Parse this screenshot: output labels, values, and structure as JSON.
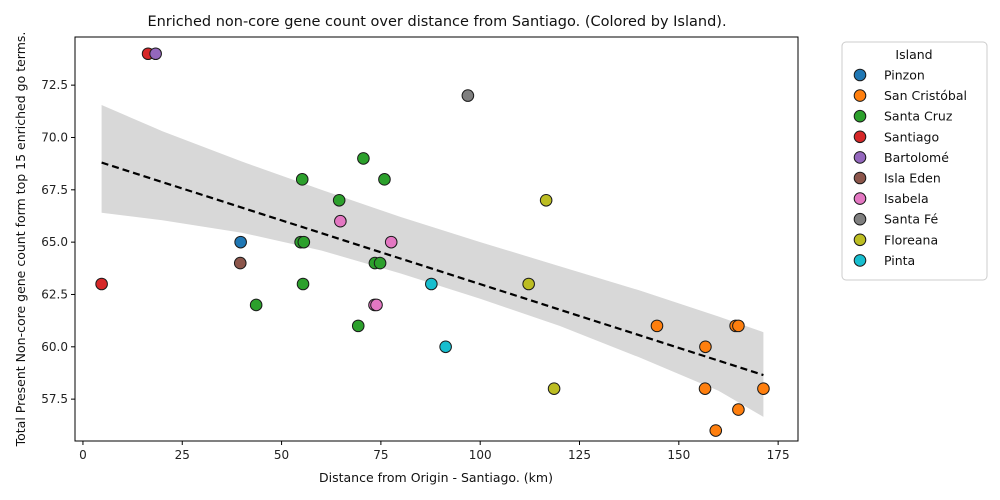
{
  "chart_data": {
    "type": "scatter",
    "title": "Enriched non-core gene count over distance from Santiago. (Colored by Island).",
    "xlabel": "Distance from Origin - Santiago. (km)",
    "ylabel": "Total Present Non-core gene count form top 15 enriched go terms.",
    "xlim": [
      -2,
      180
    ],
    "ylim": [
      55.5,
      74.8
    ],
    "xticks": [
      0,
      25,
      50,
      75,
      100,
      125,
      150,
      175
    ],
    "yticks": [
      57.5,
      60.0,
      62.5,
      65.0,
      67.5,
      70.0,
      72.5
    ],
    "grid": false,
    "legend": {
      "title": "Island",
      "placement": "outside-right"
    },
    "series": [
      {
        "name": "Pinzon",
        "color": "#1f77b4",
        "points": [
          {
            "x": 39.7,
            "y": 65
          }
        ]
      },
      {
        "name": "San Cristóbal",
        "color": "#ff7f0e",
        "points": [
          {
            "x": 144.5,
            "y": 61
          },
          {
            "x": 164.3,
            "y": 61
          },
          {
            "x": 165.0,
            "y": 61
          },
          {
            "x": 156.7,
            "y": 60
          },
          {
            "x": 156.6,
            "y": 58
          },
          {
            "x": 171.3,
            "y": 58
          },
          {
            "x": 165.0,
            "y": 57
          },
          {
            "x": 159.3,
            "y": 56
          }
        ]
      },
      {
        "name": "Santa Cruz",
        "color": "#2ca02c",
        "points": [
          {
            "x": 70.6,
            "y": 69
          },
          {
            "x": 55.2,
            "y": 68
          },
          {
            "x": 75.9,
            "y": 68
          },
          {
            "x": 64.5,
            "y": 67
          },
          {
            "x": 54.8,
            "y": 65
          },
          {
            "x": 55.6,
            "y": 65
          },
          {
            "x": 73.5,
            "y": 64
          },
          {
            "x": 74.8,
            "y": 64
          },
          {
            "x": 55.4,
            "y": 63
          },
          {
            "x": 43.6,
            "y": 62
          },
          {
            "x": 69.3,
            "y": 61
          }
        ]
      },
      {
        "name": "Santiago",
        "color": "#d62728",
        "points": [
          {
            "x": 16.4,
            "y": 74
          },
          {
            "x": 4.7,
            "y": 63
          }
        ]
      },
      {
        "name": "Bartolomé",
        "color": "#9467bd",
        "points": [
          {
            "x": 18.3,
            "y": 74
          }
        ]
      },
      {
        "name": "Isla Eden",
        "color": "#8c564b",
        "points": [
          {
            "x": 39.6,
            "y": 64
          }
        ]
      },
      {
        "name": "Isabela",
        "color": "#e377c2",
        "points": [
          {
            "x": 64.8,
            "y": 66
          },
          {
            "x": 77.6,
            "y": 65
          },
          {
            "x": 73.4,
            "y": 62
          },
          {
            "x": 73.9,
            "y": 62
          }
        ]
      },
      {
        "name": "Santa Fé",
        "color": "#7f7f7f",
        "points": [
          {
            "x": 96.9,
            "y": 72
          }
        ]
      },
      {
        "name": "Floreana",
        "color": "#bcbd22",
        "points": [
          {
            "x": 116.6,
            "y": 67
          },
          {
            "x": 112.2,
            "y": 63
          },
          {
            "x": 118.6,
            "y": 58
          }
        ]
      },
      {
        "name": "Pinta",
        "color": "#17becf",
        "points": [
          {
            "x": 87.7,
            "y": 63
          },
          {
            "x": 91.3,
            "y": 60
          }
        ]
      }
    ],
    "regression": {
      "line": [
        {
          "x": 4.7,
          "y": 68.8
        },
        {
          "x": 171.3,
          "y": 58.65
        }
      ],
      "ci_upper": [
        {
          "x": 4.7,
          "y": 71.55
        },
        {
          "x": 20,
          "y": 70.3
        },
        {
          "x": 40,
          "y": 68.85
        },
        {
          "x": 60,
          "y": 67.5
        },
        {
          "x": 80,
          "y": 66.2
        },
        {
          "x": 100,
          "y": 65.0
        },
        {
          "x": 120,
          "y": 63.85
        },
        {
          "x": 140,
          "y": 62.7
        },
        {
          "x": 160,
          "y": 61.45
        },
        {
          "x": 171.3,
          "y": 60.7
        }
      ],
      "ci_lower": [
        {
          "x": 4.7,
          "y": 66.4
        },
        {
          "x": 20,
          "y": 66.05
        },
        {
          "x": 40,
          "y": 65.45
        },
        {
          "x": 60,
          "y": 64.6
        },
        {
          "x": 80,
          "y": 63.5
        },
        {
          "x": 100,
          "y": 62.3
        },
        {
          "x": 120,
          "y": 61.0
        },
        {
          "x": 140,
          "y": 59.5
        },
        {
          "x": 160,
          "y": 57.9
        },
        {
          "x": 171.3,
          "y": 56.65
        }
      ],
      "line_color": "#000000",
      "band_color": "#d8d8d8"
    }
  }
}
